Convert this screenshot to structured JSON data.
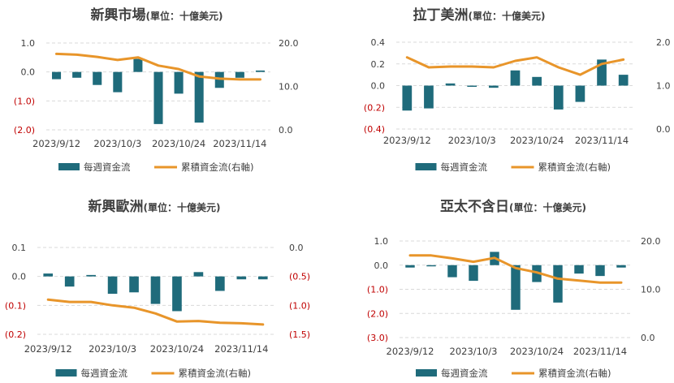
{
  "legend": {
    "bar_label": "每週資金流",
    "line_label": "累積資金流(右軸)"
  },
  "colors": {
    "bar": "#1f6b7b",
    "line": "#e8952a",
    "negative_tick": "#c00000",
    "text": "#404040",
    "grid": "#d9d9d9"
  },
  "chart_data": [
    {
      "type": "bar",
      "title": "新興市場",
      "title_suffix": "(單位：十億美元)",
      "x_tick_labels": [
        "2023/9/12",
        "2023/10/3",
        "2023/10/24",
        "2023/11/14"
      ],
      "x_tick_indices": [
        0,
        3,
        6,
        9
      ],
      "left_ticks": [
        "1.0",
        "0.0",
        "(1.0)",
        "(2.0)"
      ],
      "left_tick_values": [
        1,
        0,
        -1,
        -2
      ],
      "left_ylim": [
        -2,
        1
      ],
      "right_ticks": [
        "20.0",
        "10.0",
        "0.0"
      ],
      "right_tick_values": [
        20,
        10,
        0
      ],
      "right_ylim": [
        0,
        20
      ],
      "series": [
        {
          "name": "每週資金流",
          "axis": "left",
          "values": [
            -0.25,
            -0.2,
            -0.45,
            -0.7,
            0.45,
            -1.8,
            -0.75,
            -1.75,
            -0.55,
            -0.2,
            0.05
          ]
        },
        {
          "name": "累積資金流(右軸)",
          "axis": "right",
          "values": [
            17.5,
            17.3,
            16.8,
            16.1,
            16.7,
            14.8,
            14.0,
            12.3,
            11.8,
            11.6,
            11.6
          ]
        }
      ]
    },
    {
      "type": "bar",
      "title": "拉丁美洲",
      "title_suffix": "(單位：十億美元)",
      "x_tick_labels": [
        "2023/9/12",
        "2023/10/3",
        "2023/10/24",
        "2023/11/14"
      ],
      "x_tick_indices": [
        0,
        3,
        6,
        9
      ],
      "left_ticks": [
        "0.4",
        "0.2",
        "0.0",
        "(0.2)",
        "(0.4)"
      ],
      "left_tick_values": [
        0.4,
        0.2,
        0,
        -0.2,
        -0.4
      ],
      "left_ylim": [
        -0.4,
        0.4
      ],
      "right_ticks": [
        "2.0",
        "1.0",
        "0.0"
      ],
      "right_tick_values": [
        2,
        1,
        0
      ],
      "right_ylim": [
        0,
        2
      ],
      "series": [
        {
          "name": "每週資金流",
          "axis": "left",
          "values": [
            -0.23,
            -0.21,
            0.02,
            0.0,
            -0.02,
            0.14,
            0.08,
            -0.22,
            -0.15,
            0.24,
            0.1
          ]
        },
        {
          "name": "累積資金流(右軸)",
          "axis": "right",
          "values": [
            1.65,
            1.42,
            1.44,
            1.44,
            1.42,
            1.57,
            1.65,
            1.42,
            1.25,
            1.5,
            1.6
          ]
        }
      ]
    },
    {
      "type": "bar",
      "title": "新興歐洲",
      "title_suffix": "(單位：十億美元)",
      "x_tick_labels": [
        "2023/9/12",
        "2023/10/3",
        "2023/10/24",
        "2023/11/14"
      ],
      "x_tick_indices": [
        0,
        3,
        6,
        9
      ],
      "left_ticks": [
        "0.1",
        "0.0",
        "(0.1)",
        "(0.2)"
      ],
      "left_tick_values": [
        0.1,
        0,
        -0.1,
        -0.2
      ],
      "left_ylim": [
        -0.2,
        0.1
      ],
      "right_ticks": [
        "0.0",
        "(0.5)",
        "(1.0)",
        "(1.5)"
      ],
      "right_tick_values": [
        0,
        -0.5,
        -1.0,
        -1.5
      ],
      "right_ylim": [
        -1.5,
        0
      ],
      "series": [
        {
          "name": "每週資金流",
          "axis": "left",
          "values": [
            0.01,
            -0.035,
            0.005,
            -0.06,
            -0.055,
            -0.095,
            -0.12,
            0.015,
            -0.05,
            -0.01,
            -0.01
          ]
        },
        {
          "name": "累積資金流(右軸)",
          "axis": "right",
          "values": [
            -0.9,
            -0.94,
            -0.94,
            -1.0,
            -1.04,
            -1.14,
            -1.28,
            -1.27,
            -1.3,
            -1.31,
            -1.33
          ]
        }
      ]
    },
    {
      "type": "bar",
      "title": "亞太不含日",
      "title_suffix": "(單位：十億美元)",
      "x_tick_labels": [
        "2023/9/12",
        "2023/10/3",
        "2023/10/24",
        "2023/11/14"
      ],
      "x_tick_indices": [
        0,
        3,
        6,
        9
      ],
      "left_ticks": [
        "1.0",
        "0.0",
        "(1.0)",
        "(2.0)",
        "(3.0)"
      ],
      "left_tick_values": [
        1,
        0,
        -1,
        -2,
        -3
      ],
      "left_ylim": [
        -3,
        1
      ],
      "right_ticks": [
        "20.0",
        "10.0",
        "0.0"
      ],
      "right_tick_values": [
        20,
        10,
        0
      ],
      "right_ylim": [
        0,
        20
      ],
      "series": [
        {
          "name": "每週資金流",
          "axis": "left",
          "values": [
            -0.1,
            0.0,
            -0.5,
            -0.65,
            0.55,
            -1.85,
            -0.7,
            -1.55,
            -0.35,
            -0.45,
            -0.1
          ]
        },
        {
          "name": "累積資金流(右軸)",
          "axis": "right",
          "values": [
            17.0,
            17.0,
            16.4,
            15.7,
            16.5,
            14.4,
            13.5,
            12.2,
            11.8,
            11.4,
            11.4
          ]
        }
      ]
    }
  ]
}
